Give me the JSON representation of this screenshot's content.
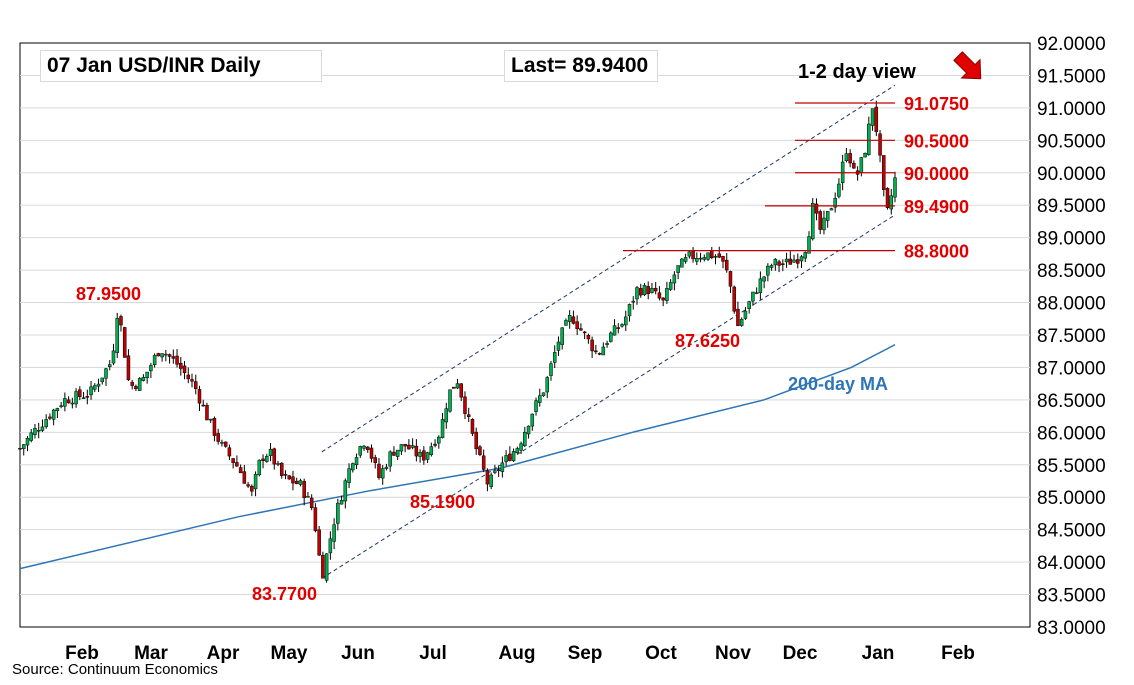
{
  "header": {
    "title": "07 Jan  USD/INR  Daily",
    "last": "Last= 89.9400"
  },
  "source": "Source: Continuum Economics",
  "chart_data": {
    "type": "candlestick",
    "title": "07 Jan  USD/INR  Daily",
    "ylim": [
      83.0,
      92.0
    ],
    "y_ticks": [
      "92.0000",
      "91.5000",
      "91.0000",
      "90.5000",
      "90.0000",
      "89.5000",
      "89.0000",
      "88.5000",
      "88.0000",
      "87.5000",
      "87.0000",
      "86.5000",
      "86.0000",
      "85.5000",
      "85.0000",
      "84.5000",
      "84.0000",
      "83.5000",
      "83.0000"
    ],
    "x_ticks": [
      "Feb",
      "Mar",
      "Apr",
      "May",
      "Jun",
      "Jul",
      "Aug",
      "Sep",
      "Oct",
      "Nov",
      "Dec",
      "Jan",
      "Feb"
    ],
    "grid": "horizontal",
    "view_label": "1-2 day view",
    "view_arrow": "down-right",
    "level_lines": [
      {
        "label": "91.0750",
        "value": 91.075
      },
      {
        "label": "90.5000",
        "value": 90.5
      },
      {
        "label": "90.0000",
        "value": 90.0
      },
      {
        "label": "89.4900",
        "value": 89.49
      },
      {
        "label": "88.8000",
        "value": 88.8
      }
    ],
    "annotations": [
      {
        "label": "87.9500",
        "value": 87.95
      },
      {
        "label": "83.7700",
        "value": 83.77
      },
      {
        "label": "85.1900",
        "value": 85.19
      },
      {
        "label": "87.6250",
        "value": 87.625
      }
    ],
    "ma_label": "200-day MA",
    "ma_color": "#2e75b6",
    "candle_up_color": "#00b050",
    "candle_down_color": "#c00000",
    "label_color": "#e00000",
    "price_path": [
      [
        0.0,
        85.75
      ],
      [
        0.015,
        86.0
      ],
      [
        0.05,
        86.5
      ],
      [
        0.08,
        86.6
      ],
      [
        0.105,
        87.1
      ],
      [
        0.112,
        87.95
      ],
      [
        0.125,
        86.7
      ],
      [
        0.14,
        86.8
      ],
      [
        0.16,
        87.3
      ],
      [
        0.18,
        87.05
      ],
      [
        0.2,
        86.7
      ],
      [
        0.215,
        86.2
      ],
      [
        0.23,
        85.8
      ],
      [
        0.25,
        85.45
      ],
      [
        0.265,
        85.05
      ],
      [
        0.275,
        85.6
      ],
      [
        0.285,
        85.7
      ],
      [
        0.3,
        85.3
      ],
      [
        0.32,
        85.2
      ],
      [
        0.335,
        84.8
      ],
      [
        0.345,
        83.77
      ],
      [
        0.36,
        84.7
      ],
      [
        0.38,
        85.6
      ],
      [
        0.395,
        85.9
      ],
      [
        0.41,
        85.3
      ],
      [
        0.425,
        85.7
      ],
      [
        0.44,
        85.8
      ],
      [
        0.46,
        85.6
      ],
      [
        0.48,
        86.0
      ],
      [
        0.49,
        86.6
      ],
      [
        0.5,
        86.8
      ],
      [
        0.51,
        86.3
      ],
      [
        0.52,
        85.8
      ],
      [
        0.535,
        85.19
      ],
      [
        0.55,
        85.5
      ],
      [
        0.57,
        85.8
      ],
      [
        0.585,
        86.3
      ],
      [
        0.6,
        86.7
      ],
      [
        0.615,
        87.4
      ],
      [
        0.63,
        87.8
      ],
      [
        0.645,
        87.5
      ],
      [
        0.66,
        87.2
      ],
      [
        0.675,
        87.5
      ],
      [
        0.69,
        87.7
      ],
      [
        0.705,
        88.2
      ],
      [
        0.72,
        88.2
      ],
      [
        0.735,
        88.0
      ],
      [
        0.75,
        88.5
      ],
      [
        0.765,
        88.7
      ],
      [
        0.785,
        88.75
      ],
      [
        0.8,
        88.7
      ],
      [
        0.81,
        88.4
      ],
      [
        0.82,
        87.625
      ],
      [
        0.83,
        87.9
      ],
      [
        0.845,
        88.3
      ],
      [
        0.86,
        88.6
      ],
      [
        0.875,
        88.6
      ],
      [
        0.89,
        88.7
      ],
      [
        0.9,
        88.9
      ],
      [
        0.905,
        89.5
      ],
      [
        0.915,
        89.1
      ],
      [
        0.925,
        89.4
      ],
      [
        0.935,
        89.8
      ],
      [
        0.945,
        90.4
      ],
      [
        0.955,
        89.9
      ],
      [
        0.965,
        90.3
      ],
      [
        0.975,
        91.075
      ],
      [
        0.982,
        90.3
      ],
      [
        0.99,
        89.3
      ],
      [
        1.0,
        89.9
      ]
    ],
    "ma_path": [
      [
        0.0,
        83.9
      ],
      [
        0.25,
        84.7
      ],
      [
        0.4,
        85.1
      ],
      [
        0.55,
        85.45
      ],
      [
        0.7,
        86.0
      ],
      [
        0.85,
        86.5
      ],
      [
        0.95,
        87.0
      ],
      [
        1.0,
        87.35
      ]
    ],
    "channel_upper": [
      [
        0.345,
        85.7
      ],
      [
        1.0,
        91.35
      ]
    ],
    "channel_lower": [
      [
        0.345,
        83.75
      ],
      [
        1.0,
        89.35
      ]
    ]
  }
}
